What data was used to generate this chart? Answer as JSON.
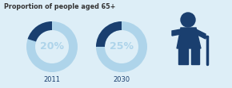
{
  "title": "Proportion of people aged 65+",
  "background_color": "#ddeef7",
  "donut1_value": 20,
  "donut1_label": "20%",
  "donut1_year": "2011",
  "donut2_value": 25,
  "donut2_label": "25%",
  "donut2_year": "2030",
  "donut_light_color": "#aed4ea",
  "donut_dark_color": "#1a3f6f",
  "donut_center_text_color": "#aed4ea",
  "title_color": "#333333",
  "year_color": "#1a3f6f",
  "figure_color": "#1a3f6f"
}
